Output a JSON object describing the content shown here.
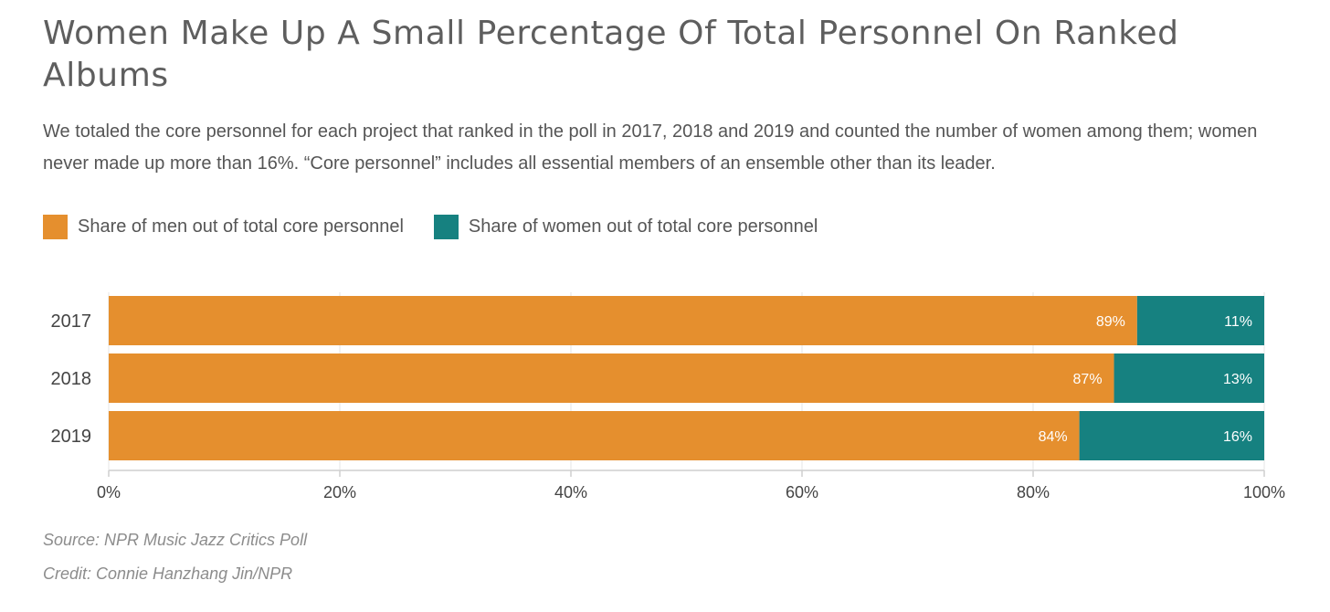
{
  "title": "Women Make Up A Small Percentage Of Total Personnel On Ranked Albums",
  "subtitle": "We totaled the core personnel for each project that ranked in the poll in 2017, 2018 and 2019 and counted the number of women among them; women never made up more than 16%. “Core personnel” includes all essential members of an ensemble other than its leader.",
  "legend": [
    {
      "label": "Share of men out of total core personnel",
      "color": "#e58f2e"
    },
    {
      "label": "Share of women out of total core personnel",
      "color": "#168180"
    }
  ],
  "source": "Source: NPR Music Jazz Critics Poll",
  "credit": "Credit: Connie Hanzhang Jin/NPR",
  "chart_data": {
    "type": "bar",
    "orientation": "horizontal",
    "stacked": true,
    "categories": [
      "2017",
      "2018",
      "2019"
    ],
    "series": [
      {
        "name": "Share of men out of total core personnel",
        "values": [
          89,
          87,
          84
        ],
        "labels": [
          "89%",
          "87%",
          "84%"
        ],
        "color": "#e58f2e"
      },
      {
        "name": "Share of women out of total core personnel",
        "values": [
          11,
          13,
          16
        ],
        "labels": [
          "11%",
          "13%",
          "16%"
        ],
        "color": "#168180"
      }
    ],
    "xlim": [
      0,
      100
    ],
    "xticks": [
      0,
      20,
      40,
      60,
      80,
      100
    ],
    "xtick_labels": [
      "0%",
      "20%",
      "40%",
      "60%",
      "80%",
      "100%"
    ],
    "grid": "vertical",
    "legend_position": "top-left"
  }
}
